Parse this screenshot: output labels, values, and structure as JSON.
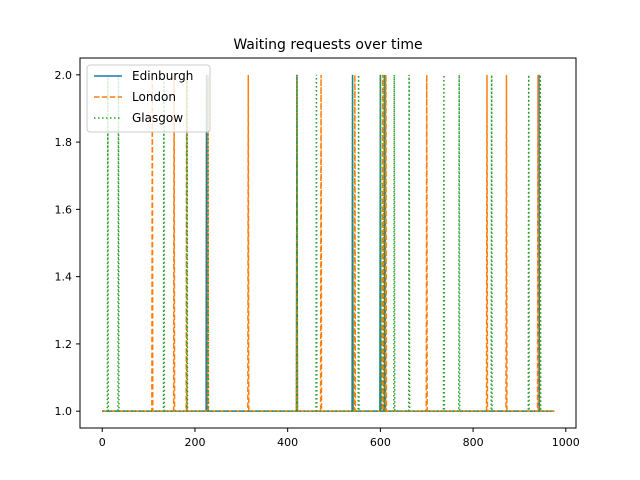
{
  "chart_data": {
    "type": "line",
    "title": "Waiting requests over time",
    "xlabel": "",
    "ylabel": "",
    "xlim": [
      -48,
      1022
    ],
    "ylim": [
      0.95,
      2.05
    ],
    "x_ticks": [
      0,
      200,
      400,
      600,
      800,
      1000
    ],
    "y_ticks": [
      1.0,
      1.2,
      1.4,
      1.6,
      1.8,
      2.0
    ],
    "grid": false,
    "legend_position": "top-left",
    "x_domain": [
      0,
      975
    ],
    "baseline": 1.0,
    "peak": 2.0,
    "series": [
      {
        "name": "Edinburgh",
        "color": "#1f77b4",
        "style": "solid",
        "spikes": [
          225,
          420,
          540,
          600,
          610,
          942
        ]
      },
      {
        "name": "London",
        "color": "#ff7f0e",
        "style": "dashed",
        "spikes": [
          108,
          155,
          182,
          228,
          315,
          420,
          472,
          545,
          605,
          612,
          700,
          830,
          872,
          940
        ]
      },
      {
        "name": "Glasgow",
        "color": "#2ca02c",
        "style": "dotted",
        "spikes": [
          12,
          35,
          133,
          183,
          228,
          420,
          462,
          540,
          553,
          600,
          608,
          630,
          662,
          737,
          770,
          840,
          920,
          945
        ]
      }
    ]
  }
}
